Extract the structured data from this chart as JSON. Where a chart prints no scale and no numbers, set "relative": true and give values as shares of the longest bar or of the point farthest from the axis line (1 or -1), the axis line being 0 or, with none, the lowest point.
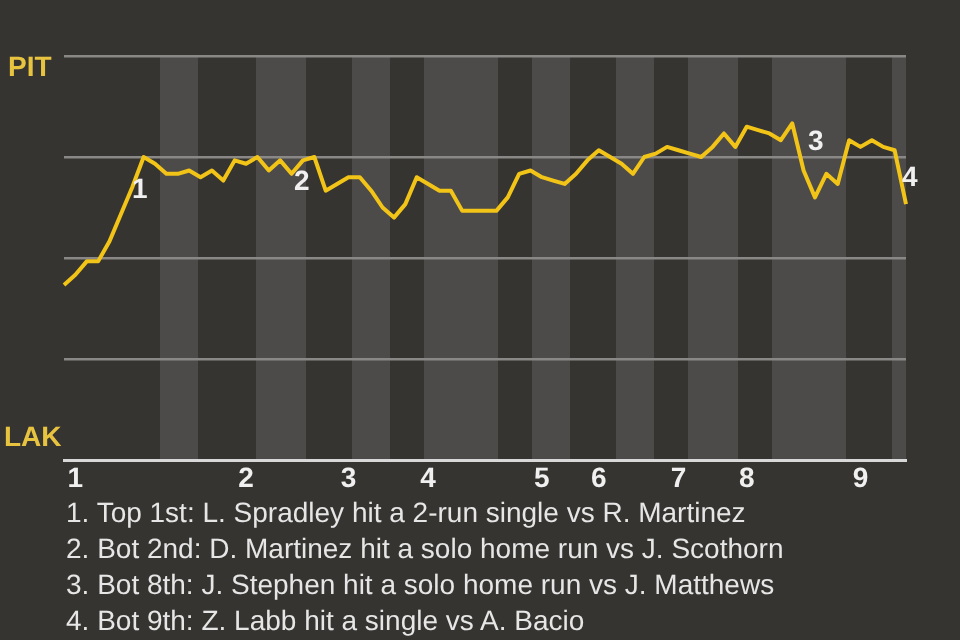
{
  "chart_data": {
    "type": "line",
    "relative": true,
    "categories": [
      null,
      "1",
      null,
      null,
      null,
      null,
      null,
      null,
      null,
      null,
      null,
      null,
      null,
      null,
      null,
      null,
      "2",
      null,
      null,
      null,
      null,
      null,
      null,
      null,
      null,
      "3",
      null,
      null,
      null,
      null,
      null,
      null,
      "4",
      null,
      null,
      null,
      null,
      null,
      null,
      null,
      null,
      null,
      "5",
      null,
      null,
      null,
      null,
      "6",
      null,
      null,
      null,
      null,
      null,
      null,
      "7",
      null,
      null,
      null,
      null,
      null,
      "8",
      null,
      null,
      null,
      null,
      null,
      null,
      null,
      null,
      null,
      "9",
      null,
      null,
      null,
      null
    ],
    "series": [
      {
        "color": "#f2c418",
        "values": [
          0.52,
          0.55,
          0.59,
          0.59,
          0.65,
          0.73,
          0.81,
          0.9,
          0.88,
          0.85,
          0.85,
          0.86,
          0.84,
          0.86,
          0.83,
          0.89,
          0.88,
          0.9,
          0.86,
          0.89,
          0.85,
          0.89,
          0.9,
          0.8,
          0.82,
          0.84,
          0.84,
          0.8,
          0.75,
          0.72,
          0.76,
          0.84,
          0.82,
          0.8,
          0.8,
          0.74,
          0.74,
          0.74,
          0.74,
          0.78,
          0.85,
          0.86,
          0.84,
          0.83,
          0.82,
          0.85,
          0.89,
          0.92,
          0.9,
          0.88,
          0.85,
          0.9,
          0.91,
          0.93,
          0.92,
          0.91,
          0.9,
          0.93,
          0.97,
          0.93,
          0.99,
          0.98,
          0.97,
          0.95,
          1,
          0.86,
          0.78,
          0.85,
          0.82,
          0.95,
          0.93,
          0.95,
          0.93,
          0.92,
          0.76
        ]
      }
    ],
    "grid": "y",
    "legend": false,
    "marker": "none",
    "line_style": "solid",
    "annotations": [
      "PIT",
      "LAK",
      "1",
      "2",
      "3",
      "4",
      "1. Top 1st: L. Spradley hit a 2-run single vs R. Martinez",
      "2. Bot 2nd: D. Martinez hit a solo home run vs J. Scothorn",
      "3. Bot 8th: J. Stephen hit a solo home run vs J. Matthews",
      "4. Bot 9th: Z. Labb hit a single vs A. Bacio"
    ]
  }
}
